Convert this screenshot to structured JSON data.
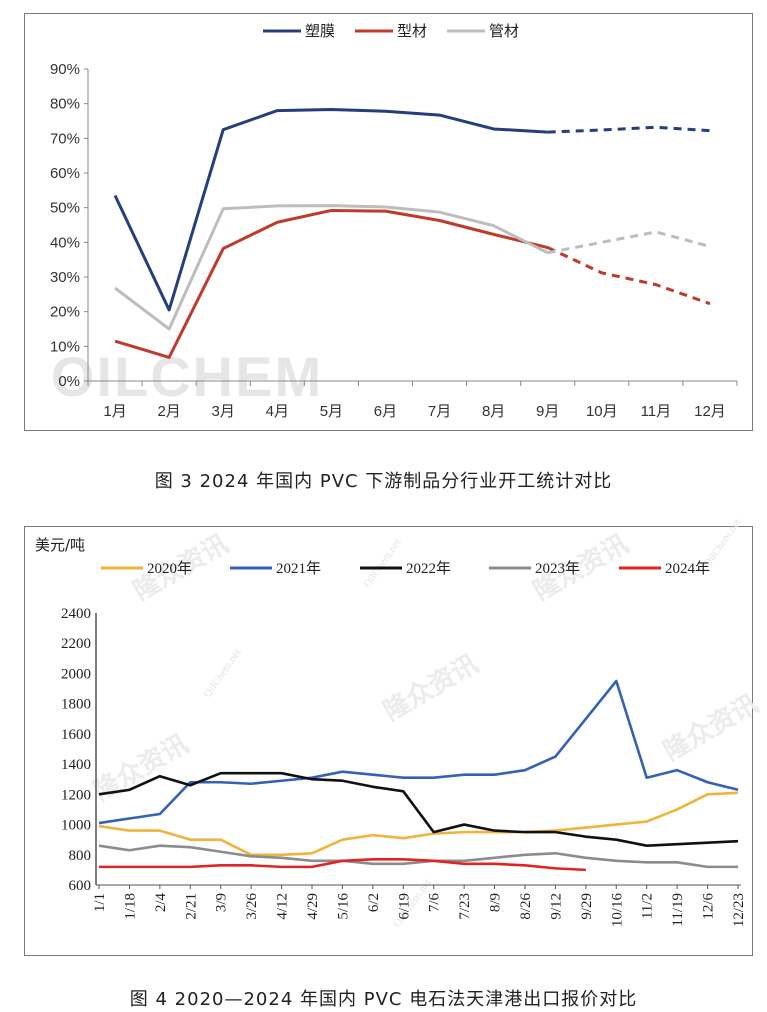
{
  "chart_data": [
    {
      "type": "line",
      "categories": [
        "1月",
        "2月",
        "3月",
        "4月",
        "5月",
        "6月",
        "7月",
        "8月",
        "9月",
        "10月",
        "11月",
        "12月"
      ],
      "y_ticks": [
        "0%",
        "10%",
        "20%",
        "30%",
        "40%",
        "50%",
        "60%",
        "70%",
        "80%",
        "90%"
      ],
      "ylim": [
        0,
        90
      ],
      "actual_through": "9月",
      "legend_position": "top",
      "series": [
        {
          "name": "塑膜",
          "color": "#253f7c",
          "values": [
            53.5,
            20.5,
            72.5,
            78,
            78.3,
            77.8,
            76.7,
            72.7,
            71.8,
            72.4,
            73.2,
            72.2
          ]
        },
        {
          "name": "型材",
          "color": "#c0392b",
          "values": [
            11.5,
            6.8,
            38.2,
            45.8,
            49.2,
            49,
            46.3,
            42.3,
            38.5,
            31.2,
            27.8,
            22.3
          ]
        },
        {
          "name": "管材",
          "color": "#bdbdbd",
          "values": [
            26.8,
            15,
            49.7,
            50.5,
            50.6,
            50.2,
            48.7,
            44.8,
            37,
            40,
            43,
            38.8
          ]
        }
      ],
      "watermark": "OILCHEM",
      "caption": "图 3  2024 年国内 PVC 下游制品分行业开工统计对比"
    },
    {
      "type": "line",
      "unit_label": "美元/吨",
      "categories": [
        "1/1",
        "1/18",
        "2/4",
        "2/21",
        "3/9",
        "3/26",
        "4/12",
        "4/29",
        "5/16",
        "6/2",
        "6/19",
        "7/6",
        "7/23",
        "8/9",
        "8/26",
        "9/12",
        "9/29",
        "10/16",
        "11/2",
        "11/19",
        "12/6",
        "12/23"
      ],
      "y_ticks": [
        "600",
        "800",
        "1000",
        "1200",
        "1400",
        "1600",
        "1800",
        "2000",
        "2200",
        "2400"
      ],
      "ylim": [
        600,
        2400
      ],
      "legend_position": "top",
      "series": [
        {
          "name": "2020年",
          "color": "#f0b43c",
          "values": [
            990,
            960,
            960,
            900,
            900,
            800,
            800,
            810,
            900,
            930,
            910,
            940,
            950,
            950,
            950,
            960,
            980,
            1000,
            1020,
            1100,
            1200,
            1210
          ]
        },
        {
          "name": "2021年",
          "color": "#3561b5",
          "values": [
            1010,
            1040,
            1070,
            1280,
            1280,
            1270,
            1290,
            1310,
            1350,
            1330,
            1310,
            1310,
            1330,
            1330,
            1360,
            1450,
            1700,
            1950,
            1310,
            1360,
            1280,
            1230
          ]
        },
        {
          "name": "2022年",
          "color": "#111111",
          "values": [
            1200,
            1230,
            1320,
            1260,
            1340,
            1340,
            1340,
            1300,
            1290,
            1250,
            1220,
            950,
            1000,
            960,
            950,
            950,
            920,
            900,
            860,
            870,
            880,
            890
          ]
        },
        {
          "name": "2023年",
          "color": "#8c8c8c",
          "values": [
            860,
            830,
            860,
            850,
            820,
            790,
            780,
            760,
            760,
            740,
            740,
            760,
            760,
            780,
            800,
            810,
            780,
            760,
            750,
            750,
            720,
            720
          ]
        },
        {
          "name": "2024年",
          "color": "#e02424",
          "values": [
            720,
            720,
            720,
            720,
            730,
            730,
            720,
            720,
            760,
            770,
            770,
            760,
            740,
            740,
            730,
            710,
            700,
            null,
            null,
            null,
            null,
            null
          ]
        }
      ],
      "watermarks": [
        "隆众资讯",
        "OilChem.net"
      ],
      "caption": "图 4  2020—2024 年国内 PVC 电石法天津港出口报价对比"
    }
  ]
}
